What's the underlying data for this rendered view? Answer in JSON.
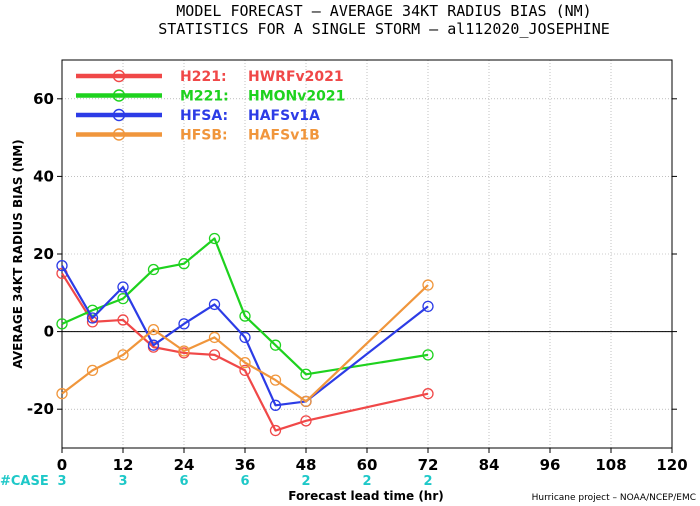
{
  "title_line1": "MODEL FORECAST – AVERAGE 34KT RADIUS BIAS (NM)",
  "title_line2": "STATISTICS FOR A SINGLE STORM – al112020_JOSEPHINE",
  "credit": "Hurricane project – NOAA/NCEP/EMC",
  "case_label": "#CASE",
  "case_color": "#1ec8c8",
  "cases": [
    {
      "x": 0,
      "label": "3"
    },
    {
      "x": 12,
      "label": "3"
    },
    {
      "x": 24,
      "label": "6"
    },
    {
      "x": 36,
      "label": "6"
    },
    {
      "x": 48,
      "label": "2"
    },
    {
      "x": 60,
      "label": "2"
    },
    {
      "x": 72,
      "label": "2"
    }
  ],
  "chart_data": {
    "type": "line",
    "xlabel": "Forecast lead time (hr)",
    "ylabel": "AVERAGE 34KT RADIUS BIAS (NM)",
    "xlim": [
      0,
      120
    ],
    "ylim": [
      -30,
      70
    ],
    "xticks": [
      0,
      12,
      24,
      36,
      48,
      60,
      72,
      84,
      96,
      108,
      120
    ],
    "yticks": [
      -20,
      0,
      20,
      40,
      60
    ],
    "zero_line": true,
    "grid": true,
    "legend_position": "top-left",
    "series": [
      {
        "name": "H221: HWRFv2021",
        "legend_code": "H221:",
        "legend_desc": "HWRFv2021",
        "color": "#f04848",
        "x": [
          0,
          6,
          12,
          18,
          24,
          30,
          36,
          42,
          48,
          72
        ],
        "y": [
          15,
          2.5,
          3,
          -4,
          -5.5,
          -6,
          -10,
          -25.5,
          -23,
          -16
        ]
      },
      {
        "name": "M221: HMONv2021",
        "legend_code": "M221:",
        "legend_desc": "HMONv2021",
        "color": "#1ed21e",
        "x": [
          0,
          6,
          12,
          18,
          24,
          30,
          36,
          42,
          48,
          72
        ],
        "y": [
          2,
          5.5,
          8.5,
          16,
          17.5,
          24,
          4,
          -3.5,
          -11,
          -6
        ]
      },
      {
        "name": "HFSA: HAFSv1A",
        "legend_code": "HFSA:",
        "legend_desc": "HAFSv1A",
        "color": "#2c3ce6",
        "x": [
          0,
          6,
          12,
          18,
          24,
          30,
          36,
          42,
          48,
          72
        ],
        "y": [
          17,
          3.5,
          11.5,
          -3.5,
          2,
          7,
          -1.5,
          -19,
          -18,
          6.5
        ]
      },
      {
        "name": "HFSB: HAFSv1B",
        "legend_code": "HFSB:",
        "legend_desc": "HAFSv1B",
        "color": "#f0963c",
        "x": [
          0,
          6,
          12,
          18,
          24,
          30,
          36,
          42,
          48,
          72
        ],
        "y": [
          -16,
          -10,
          -6,
          0.5,
          -5,
          -1.5,
          -8,
          -12.5,
          -18,
          12
        ]
      }
    ]
  }
}
